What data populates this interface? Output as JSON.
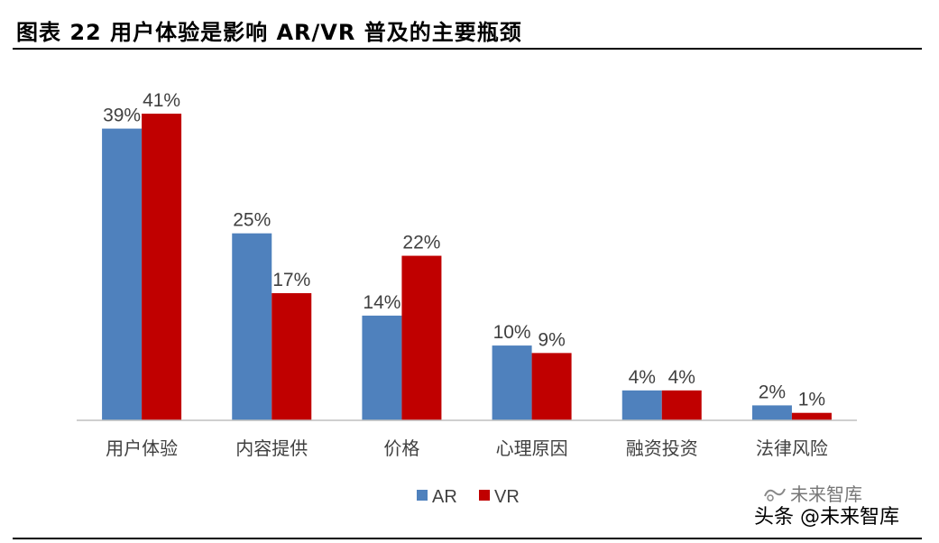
{
  "figure_title": "图表 22 用户体验是影响 AR/VR 普及的主要瓶颈",
  "watermark": {
    "line1": "未来智库",
    "line2": "头条 @未来智库"
  },
  "colors": {
    "AR": "#4F81BD",
    "VR": "#C00000",
    "axis": "#BFBFBF",
    "text": "#404040"
  },
  "chart_data": {
    "type": "bar",
    "categories": [
      "用户体验",
      "内容提供",
      "价格",
      "心理原因",
      "融资投资",
      "法律风险"
    ],
    "series": [
      {
        "name": "AR",
        "values": [
          39,
          25,
          14,
          10,
          4,
          2
        ],
        "labels": [
          "39%",
          "25%",
          "14%",
          "10%",
          "4%",
          "2%"
        ]
      },
      {
        "name": "VR",
        "values": [
          41,
          17,
          22,
          9,
          4,
          1
        ],
        "labels": [
          "41%",
          "17%",
          "22%",
          "9%",
          "4%",
          "1%"
        ]
      }
    ],
    "title": "",
    "xlabel": "",
    "ylabel": "",
    "ylim": [
      0,
      41
    ],
    "grid": false,
    "legend": "bottom",
    "data_labels": true
  }
}
